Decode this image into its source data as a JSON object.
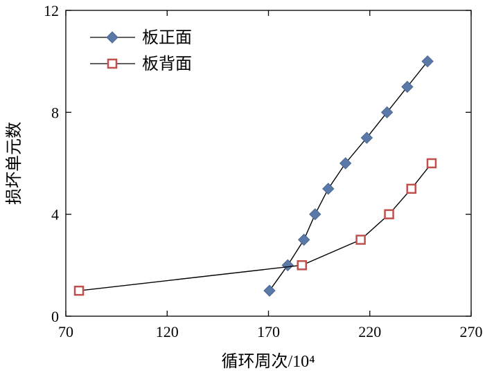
{
  "chart_data": {
    "type": "line",
    "xlabel": "循环周次/10⁴",
    "ylabel": "损坏单元数",
    "xlim": [
      70,
      270
    ],
    "ylim": [
      0,
      12
    ],
    "x_ticks": [
      70,
      120,
      170,
      220,
      270
    ],
    "y_ticks": [
      0,
      4,
      8,
      12
    ],
    "grid": false,
    "legend_position": "top-left",
    "series": [
      {
        "name": "板正面",
        "marker": "diamond-filled",
        "color": "#5b79a8",
        "x": [
          170.5,
          179.5,
          187.5,
          193,
          199.5,
          208,
          218.5,
          228.5,
          238.5,
          248.5
        ],
        "y": [
          1,
          2,
          3,
          4,
          5,
          6,
          7,
          8,
          9,
          10
        ]
      },
      {
        "name": "板背面",
        "marker": "square-open",
        "color": "#c0504d",
        "x": [
          76.5,
          186.5,
          215.5,
          229.5,
          240.5,
          250.5
        ],
        "y": [
          1,
          2,
          3,
          4,
          5,
          6
        ]
      }
    ]
  }
}
